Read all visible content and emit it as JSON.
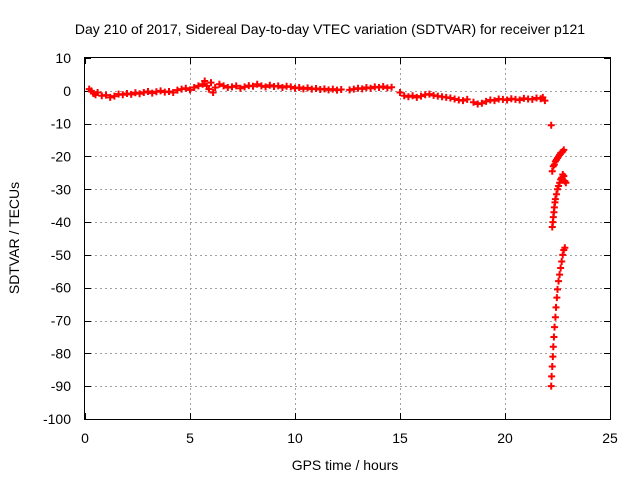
{
  "chart_data": {
    "type": "scatter",
    "title": "Day 210 of 2017, Sidereal Day-to-day VTEC variation (SDTVAR) for receiver p121",
    "xlabel": "GPS time / hours",
    "ylabel": "SDTVAR / TECUs",
    "xlim": [
      0,
      25
    ],
    "ylim": [
      -100,
      10
    ],
    "xticks": [
      0,
      5,
      10,
      15,
      20,
      25
    ],
    "yticks": [
      10,
      0,
      -10,
      -20,
      -30,
      -40,
      -50,
      -60,
      -70,
      -80,
      -90,
      -100
    ],
    "grid": true,
    "marker": "+",
    "color": "#ff0000",
    "series": [
      {
        "name": "SDTVAR",
        "points": [
          [
            0.2,
            0.5
          ],
          [
            0.3,
            0
          ],
          [
            0.4,
            -0.8
          ],
          [
            0.5,
            -1.2
          ],
          [
            0.6,
            -0.5
          ],
          [
            0.8,
            -1.5
          ],
          [
            1.0,
            -1.3
          ],
          [
            1.2,
            -2.0
          ],
          [
            1.4,
            -1.6
          ],
          [
            1.6,
            -1.0
          ],
          [
            1.8,
            -1.2
          ],
          [
            2.0,
            -0.8
          ],
          [
            2.2,
            -1.1
          ],
          [
            2.4,
            -0.6
          ],
          [
            2.6,
            -0.9
          ],
          [
            2.8,
            -0.5
          ],
          [
            3.0,
            -0.2
          ],
          [
            3.2,
            -0.7
          ],
          [
            3.4,
            -0.3
          ],
          [
            3.6,
            0.0
          ],
          [
            3.8,
            -0.4
          ],
          [
            4.0,
            -0.2
          ],
          [
            4.2,
            -0.5
          ],
          [
            4.4,
            0.2
          ],
          [
            4.6,
            0.5
          ],
          [
            4.8,
            0.8
          ],
          [
            5.0,
            0.3
          ],
          [
            5.2,
            1.0
          ],
          [
            5.4,
            1.5
          ],
          [
            5.6,
            2.0
          ],
          [
            5.7,
            3.0
          ],
          [
            5.8,
            1.5
          ],
          [
            5.9,
            0.5
          ],
          [
            6.0,
            2.5
          ],
          [
            6.1,
            -0.5
          ],
          [
            6.2,
            1.0
          ],
          [
            6.4,
            2.0
          ],
          [
            6.6,
            1.5
          ],
          [
            6.8,
            1.0
          ],
          [
            7.0,
            1.2
          ],
          [
            7.2,
            1.5
          ],
          [
            7.4,
            0.8
          ],
          [
            7.6,
            1.2
          ],
          [
            7.8,
            1.6
          ],
          [
            8.0,
            1.4
          ],
          [
            8.2,
            2.0
          ],
          [
            8.4,
            1.5
          ],
          [
            8.6,
            1.2
          ],
          [
            8.8,
            1.7
          ],
          [
            9.0,
            1.3
          ],
          [
            9.2,
            1.5
          ],
          [
            9.4,
            1.0
          ],
          [
            9.6,
            1.4
          ],
          [
            9.8,
            1.2
          ],
          [
            10.0,
            0.8
          ],
          [
            10.2,
            1.0
          ],
          [
            10.4,
            0.6
          ],
          [
            10.6,
            0.9
          ],
          [
            10.8,
            0.5
          ],
          [
            11.0,
            0.7
          ],
          [
            11.2,
            0.4
          ],
          [
            11.4,
            0.6
          ],
          [
            11.6,
            0.3
          ],
          [
            11.8,
            0.5
          ],
          [
            12.0,
            0.2
          ],
          [
            12.2,
            0.4
          ],
          [
            12.6,
            0.3
          ],
          [
            12.8,
            0.5
          ],
          [
            13.0,
            0.8
          ],
          [
            13.2,
            0.6
          ],
          [
            13.4,
            1.0
          ],
          [
            13.6,
            0.8
          ],
          [
            13.8,
            1.2
          ],
          [
            14.0,
            1.0
          ],
          [
            14.2,
            1.3
          ],
          [
            14.4,
            0.9
          ],
          [
            14.6,
            1.1
          ],
          [
            15.0,
            -0.5
          ],
          [
            15.2,
            -1.5
          ],
          [
            15.4,
            -1.8
          ],
          [
            15.6,
            -1.5
          ],
          [
            15.8,
            -2.0
          ],
          [
            16.0,
            -1.6
          ],
          [
            16.2,
            -1.2
          ],
          [
            16.4,
            -1.0
          ],
          [
            16.6,
            -1.4
          ],
          [
            16.8,
            -1.6
          ],
          [
            17.0,
            -1.8
          ],
          [
            17.2,
            -2.0
          ],
          [
            17.4,
            -2.2
          ],
          [
            17.6,
            -2.5
          ],
          [
            17.8,
            -2.8
          ],
          [
            18.0,
            -3.0
          ],
          [
            18.2,
            -2.6
          ],
          [
            18.5,
            -3.5
          ],
          [
            18.7,
            -4.0
          ],
          [
            18.9,
            -3.8
          ],
          [
            19.1,
            -3.2
          ],
          [
            19.3,
            -2.8
          ],
          [
            19.5,
            -3.0
          ],
          [
            19.7,
            -2.5
          ],
          [
            19.9,
            -2.6
          ],
          [
            20.1,
            -2.8
          ],
          [
            20.3,
            -2.4
          ],
          [
            20.5,
            -2.6
          ],
          [
            20.7,
            -2.8
          ],
          [
            20.9,
            -2.3
          ],
          [
            21.1,
            -2.5
          ],
          [
            21.3,
            -2.6
          ],
          [
            21.5,
            -2.2
          ],
          [
            21.7,
            -2.4
          ],
          [
            21.8,
            -2.0
          ],
          [
            21.9,
            -3.0
          ],
          [
            22.2,
            -10.5
          ],
          [
            22.25,
            -24.5
          ],
          [
            22.3,
            -23.0
          ],
          [
            22.35,
            -22.5
          ],
          [
            22.4,
            -21.5
          ],
          [
            22.45,
            -21.0
          ],
          [
            22.5,
            -20.5
          ],
          [
            22.55,
            -20.0
          ],
          [
            22.6,
            -19.5
          ],
          [
            22.65,
            -19.0
          ],
          [
            22.7,
            -18.8
          ],
          [
            22.75,
            -18.5
          ],
          [
            22.8,
            -18.0
          ],
          [
            22.25,
            -41.5
          ],
          [
            22.28,
            -40.0
          ],
          [
            22.3,
            -38.5
          ],
          [
            22.33,
            -37.0
          ],
          [
            22.35,
            -35.5
          ],
          [
            22.38,
            -34.0
          ],
          [
            22.4,
            -33.0
          ],
          [
            22.45,
            -31.5
          ],
          [
            22.5,
            -30.0
          ],
          [
            22.55,
            -29.0
          ],
          [
            22.6,
            -28.0
          ],
          [
            22.65,
            -27.0
          ],
          [
            22.7,
            -26.5
          ],
          [
            22.75,
            -25.5
          ],
          [
            22.8,
            -26.0
          ],
          [
            22.85,
            -27.5
          ],
          [
            22.9,
            -28.0
          ],
          [
            22.2,
            -90.0
          ],
          [
            22.22,
            -87.0
          ],
          [
            22.25,
            -84.0
          ],
          [
            22.28,
            -81.0
          ],
          [
            22.3,
            -78.0
          ],
          [
            22.33,
            -75.0
          ],
          [
            22.36,
            -72.0
          ],
          [
            22.4,
            -69.0
          ],
          [
            22.43,
            -66.0
          ],
          [
            22.47,
            -63.0
          ],
          [
            22.5,
            -60.5
          ],
          [
            22.55,
            -58.0
          ],
          [
            22.6,
            -56.0
          ],
          [
            22.65,
            -54.0
          ],
          [
            22.7,
            -52.0
          ],
          [
            22.75,
            -50.0
          ],
          [
            22.8,
            -48.5
          ],
          [
            22.85,
            -47.8
          ]
        ]
      }
    ]
  }
}
